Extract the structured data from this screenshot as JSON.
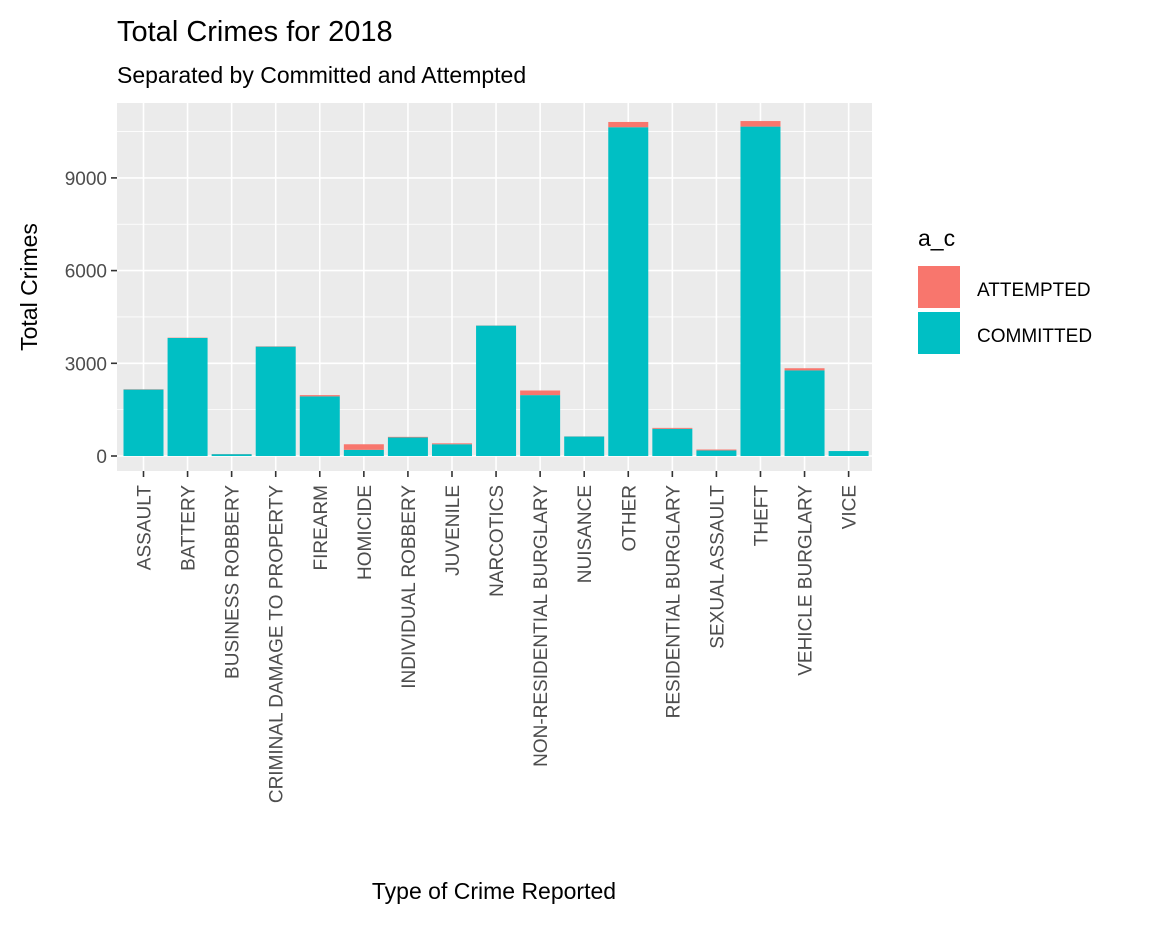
{
  "chart_data": {
    "type": "bar",
    "stacked": true,
    "title": "Total Crimes for 2018",
    "subtitle": "Separated by Committed and Attempted",
    "xlabel": "Type of Crime Reported",
    "ylabel": "Total Crimes",
    "ylim": [
      0,
      11000
    ],
    "yticks": [
      0,
      3000,
      6000,
      9000
    ],
    "grid": true,
    "legend": {
      "title": "a_c",
      "position": "right"
    },
    "categories": [
      "ASSAULT",
      "BATTERY",
      "BUSINESS ROBBERY",
      "CRIMINAL DAMAGE TO PROPERTY",
      "FIREARM",
      "HOMICIDE",
      "INDIVIDUAL ROBBERY",
      "JUVENILE",
      "NARCOTICS",
      "NON-RESIDENTIAL BURGLARY",
      "NUISANCE",
      "OTHER",
      "RESIDENTIAL BURGLARY",
      "SEXUAL ASSAULT",
      "THEFT",
      "VEHICLE BURGLARY",
      "VICE"
    ],
    "series": [
      {
        "name": "COMMITTED",
        "color": "#00BFC4",
        "values": [
          2150,
          3820,
          60,
          3540,
          1930,
          200,
          600,
          380,
          4220,
          1970,
          630,
          10640,
          880,
          180,
          10660,
          2770,
          160
        ]
      },
      {
        "name": "ATTEMPTED",
        "color": "#F8766D",
        "values": [
          10,
          10,
          5,
          10,
          40,
          180,
          20,
          30,
          5,
          150,
          5,
          170,
          30,
          30,
          180,
          70,
          0
        ]
      }
    ]
  }
}
